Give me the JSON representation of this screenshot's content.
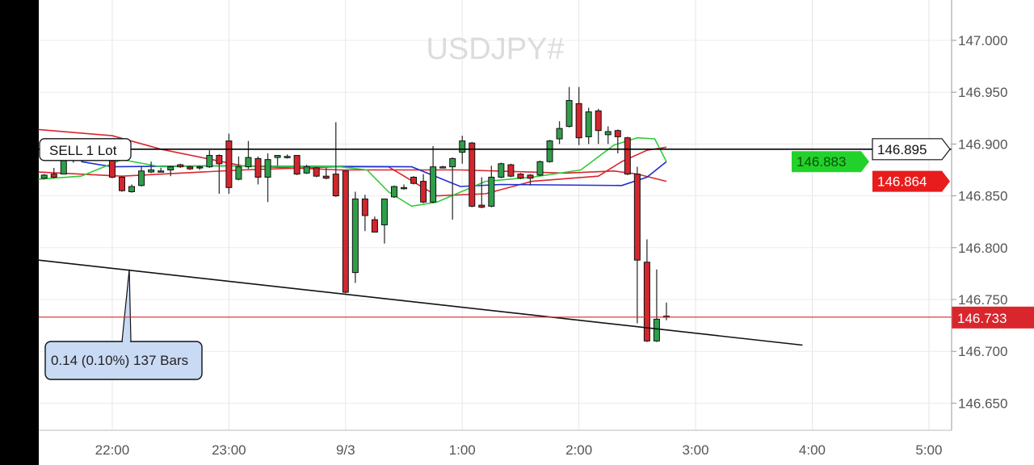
{
  "chart_data": {
    "type": "candlestick",
    "title": "USDJPY#",
    "timeframe_minutes": 5,
    "ylim": [
      146.615,
      147.039
    ],
    "xlim": [
      "21:22",
      "05:12"
    ],
    "y_ticks": [
      "147.000",
      "146.950",
      "146.900",
      "146.850",
      "146.800",
      "146.750",
      "146.700",
      "146.650"
    ],
    "y_tick_values": [
      147.0,
      146.95,
      146.9,
      146.85,
      146.8,
      146.75,
      146.7,
      146.65
    ],
    "x_ticks": [
      {
        "label": "22:00",
        "time": "22:00"
      },
      {
        "label": "23:00",
        "time": "23:00"
      },
      {
        "label": "9/3",
        "time": "00:00"
      },
      {
        "label": "1:00",
        "time": "01:00"
      },
      {
        "label": "2:00",
        "time": "02:00"
      },
      {
        "label": "3:00",
        "time": "03:00"
      },
      {
        "label": "4:00",
        "time": "04:00"
      },
      {
        "label": "5:00",
        "time": "05:00"
      }
    ],
    "grid": true,
    "colors": {
      "bull": "#2f9e4a",
      "bear": "#d3262e",
      "outline": "#111111"
    },
    "candles_columns": [
      "time",
      "open",
      "high",
      "low",
      "close"
    ],
    "candles": [
      [
        "21:25",
        146.867,
        146.871,
        146.866,
        146.87
      ],
      [
        "21:30",
        146.871,
        146.877,
        146.867,
        146.868
      ],
      [
        "21:35",
        146.871,
        146.886,
        146.871,
        146.884
      ],
      [
        "21:40",
        146.884,
        146.896,
        146.882,
        146.892
      ],
      [
        "21:45",
        146.892,
        146.903,
        146.889,
        146.899
      ],
      [
        "21:50",
        146.899,
        146.902,
        146.89,
        146.893
      ],
      [
        "21:55",
        146.893,
        146.897,
        146.884,
        146.886
      ],
      [
        "22:00",
        146.884,
        146.894,
        146.867,
        146.868
      ],
      [
        "22:05",
        146.868,
        146.869,
        146.854,
        146.855
      ],
      [
        "22:10",
        146.854,
        146.861,
        146.853,
        146.859
      ],
      [
        "22:15",
        146.86,
        146.879,
        146.859,
        146.874
      ],
      [
        "22:20",
        146.873,
        146.883,
        146.872,
        146.875
      ],
      [
        "22:25",
        146.874,
        146.877,
        146.873,
        146.874
      ],
      [
        "22:30",
        146.875,
        146.879,
        146.869,
        146.878
      ],
      [
        "22:35",
        146.88,
        146.881,
        146.877,
        146.878
      ],
      [
        "22:40",
        146.878,
        146.879,
        146.875,
        146.876
      ],
      [
        "22:45",
        146.878,
        146.879,
        146.875,
        146.877
      ],
      [
        "22:50",
        146.878,
        146.894,
        146.877,
        146.889
      ],
      [
        "22:55",
        146.889,
        146.89,
        146.852,
        146.881
      ],
      [
        "23:00",
        146.903,
        146.91,
        146.852,
        146.858
      ],
      [
        "23:05",
        146.866,
        146.888,
        146.865,
        146.878
      ],
      [
        "23:10",
        146.878,
        146.903,
        146.876,
        146.887
      ],
      [
        "23:15",
        146.886,
        146.888,
        146.861,
        146.868
      ],
      [
        "23:20",
        146.868,
        146.891,
        146.844,
        146.885
      ],
      [
        "23:25",
        146.887,
        146.889,
        146.879,
        146.889
      ],
      [
        "23:30",
        146.887,
        146.89,
        146.886,
        146.888
      ],
      [
        "23:35",
        146.889,
        146.889,
        146.87,
        146.871
      ],
      [
        "23:40",
        146.872,
        146.88,
        146.871,
        146.878
      ],
      [
        "23:45",
        146.877,
        146.878,
        146.868,
        146.869
      ],
      [
        "23:50",
        146.869,
        146.877,
        146.866,
        146.867
      ],
      [
        "23:55",
        146.871,
        146.921,
        146.849,
        146.85
      ],
      [
        "00:00",
        146.874,
        146.874,
        146.756,
        146.757
      ],
      [
        "00:05",
        146.776,
        146.854,
        146.766,
        146.847
      ],
      [
        "00:10",
        146.847,
        146.851,
        146.816,
        146.831
      ],
      [
        "00:15",
        146.827,
        146.83,
        146.815,
        146.815
      ],
      [
        "00:20",
        146.822,
        146.847,
        146.804,
        146.847
      ],
      [
        "00:25",
        146.849,
        146.86,
        146.848,
        146.859
      ],
      [
        "00:30",
        146.858,
        146.861,
        146.856,
        146.858
      ],
      [
        "00:35",
        146.868,
        146.869,
        146.861,
        146.862
      ],
      [
        "00:40",
        146.864,
        146.871,
        146.843,
        146.844
      ],
      [
        "00:45",
        146.844,
        146.898,
        146.843,
        146.878
      ],
      [
        "00:50",
        146.878,
        146.879,
        146.877,
        146.878
      ],
      [
        "00:55",
        146.878,
        146.887,
        146.827,
        146.886
      ],
      [
        "01:00",
        146.892,
        146.908,
        146.881,
        146.903
      ],
      [
        "01:05",
        146.901,
        146.902,
        146.839,
        146.84
      ],
      [
        "01:10",
        146.841,
        146.868,
        146.838,
        146.839
      ],
      [
        "01:15",
        146.84,
        146.879,
        146.839,
        146.868
      ],
      [
        "01:20",
        146.868,
        146.882,
        146.867,
        146.881
      ],
      [
        "01:25",
        146.88,
        146.881,
        146.868,
        146.869
      ],
      [
        "01:30",
        146.871,
        146.872,
        146.866,
        146.867
      ],
      [
        "01:35",
        146.87,
        146.871,
        146.86,
        146.867
      ],
      [
        "01:40",
        146.87,
        146.884,
        146.869,
        146.883
      ],
      [
        "01:45",
        146.883,
        146.904,
        146.882,
        146.903
      ],
      [
        "01:50",
        146.905,
        146.922,
        146.9,
        146.915
      ],
      [
        "01:55",
        146.917,
        146.955,
        146.916,
        146.942
      ],
      [
        "02:00",
        146.939,
        146.955,
        146.899,
        146.906
      ],
      [
        "02:05",
        146.907,
        146.935,
        146.9,
        146.931
      ],
      [
        "02:10",
        146.932,
        146.934,
        146.9,
        146.913
      ],
      [
        "02:15",
        146.909,
        146.917,
        146.9,
        146.912
      ],
      [
        "02:20",
        146.913,
        146.914,
        146.891,
        146.907
      ],
      [
        "02:25",
        146.906,
        146.907,
        146.87,
        146.871
      ],
      [
        "02:30",
        146.871,
        146.878,
        146.727,
        146.788
      ],
      [
        "02:35",
        146.786,
        146.808,
        146.709,
        146.71
      ],
      [
        "02:40",
        146.71,
        146.779,
        146.709,
        146.731
      ],
      [
        "02:45",
        146.734,
        146.747,
        146.73,
        146.733
      ]
    ],
    "indicators": [
      {
        "color": "#d9262c",
        "last_value": "146.864",
        "points": [
          [
            "21:22",
            146.914
          ],
          [
            "22:00",
            146.908
          ],
          [
            "22:25",
            146.895
          ],
          [
            "23:07",
            146.879
          ],
          [
            "23:57",
            146.875
          ],
          [
            "00:59",
            146.875
          ],
          [
            "01:53",
            146.872
          ],
          [
            "02:18",
            146.874
          ],
          [
            "02:30",
            146.871
          ],
          [
            "02:45",
            146.864
          ]
        ]
      },
      {
        "color": "#d9262c",
        "points": [
          [
            "21:22",
            146.873
          ],
          [
            "22:05",
            146.869
          ],
          [
            "23:07",
            146.875
          ],
          [
            "23:57",
            146.878
          ],
          [
            "00:22",
            146.878
          ],
          [
            "00:47",
            146.85
          ],
          [
            "01:12",
            146.852
          ],
          [
            "01:36",
            146.864
          ],
          [
            "02:10",
            146.869
          ],
          [
            "02:22",
            146.883
          ],
          [
            "02:35",
            146.894
          ],
          [
            "02:45",
            146.897
          ]
        ]
      },
      {
        "color": "#1f2fcf",
        "points": [
          [
            "21:44",
            146.883
          ],
          [
            "22:00",
            146.878
          ],
          [
            "22:50",
            146.879
          ],
          [
            "00:34",
            146.878
          ],
          [
            "00:59",
            146.859
          ],
          [
            "01:20",
            146.861
          ],
          [
            "02:22",
            146.86
          ],
          [
            "02:35",
            146.868
          ],
          [
            "02:45",
            146.883
          ]
        ]
      },
      {
        "color": "#2ecc3a",
        "last_value": "146.883",
        "points": [
          [
            "21:22",
            146.866
          ],
          [
            "21:44",
            146.869
          ],
          [
            "22:05",
            146.885
          ],
          [
            "22:25",
            146.878
          ],
          [
            "22:50",
            146.879
          ],
          [
            "23:57",
            146.878
          ],
          [
            "00:11",
            146.875
          ],
          [
            "00:22",
            146.854
          ],
          [
            "00:34",
            146.84
          ],
          [
            "00:47",
            146.844
          ],
          [
            "01:12",
            146.864
          ],
          [
            "01:36",
            146.868
          ],
          [
            "02:01",
            146.875
          ],
          [
            "02:18",
            146.899
          ],
          [
            "02:30",
            146.906
          ],
          [
            "02:39",
            146.905
          ],
          [
            "02:45",
            146.883
          ]
        ]
      }
    ],
    "horizontal_lines": [
      {
        "label": "SELL 1 Lot",
        "price": 146.895,
        "price_label": "146.895",
        "color": "#000000"
      },
      {
        "price": 146.733,
        "price_label": "146.733",
        "color": "#d9262c"
      }
    ],
    "trendline": {
      "start": [
        "21:22",
        146.788
      ],
      "end": [
        "03:55",
        146.706
      ],
      "anchor": [
        "22:10",
        146.779
      ],
      "label": "0.14 (0.10%) 137 Bars"
    }
  }
}
